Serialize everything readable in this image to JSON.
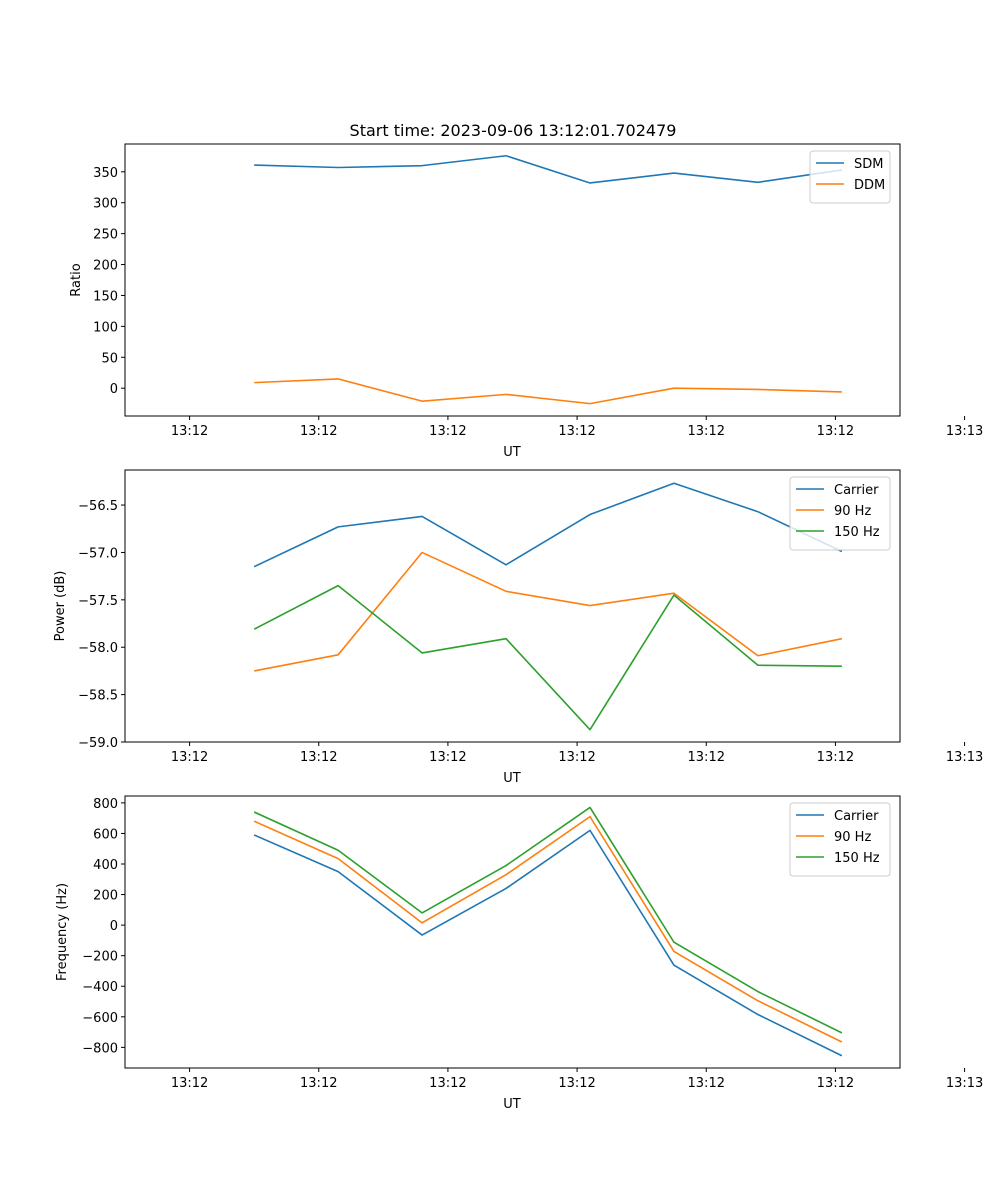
{
  "colors": {
    "blue": "#1f77b4",
    "orange": "#ff7f0e",
    "green": "#2ca02c"
  },
  "chart_data": [
    {
      "type": "line",
      "title": "Start time: 2023-09-06 13:12:01.702479",
      "xlabel": "UT",
      "ylabel": "Ratio",
      "x": [
        0.5,
        1.15,
        1.8,
        2.45,
        3.1,
        3.75,
        4.4,
        5.05
      ],
      "xlim": [
        -0.5,
        5.5
      ],
      "xticks": [
        0,
        1,
        2,
        3,
        4,
        5,
        6
      ],
      "xtick_labels": [
        "13:12",
        "13:12",
        "13:12",
        "13:12",
        "13:12",
        "13:12",
        "13:13"
      ],
      "ylim": [
        -45,
        395
      ],
      "yticks": [
        0,
        50,
        100,
        150,
        200,
        250,
        300,
        350
      ],
      "ytick_labels": [
        "0",
        "50",
        "100",
        "150",
        "200",
        "250",
        "300",
        "350"
      ],
      "legend": "top-right",
      "series": [
        {
          "name": "SDM",
          "color": "#1f77b4",
          "values": [
            361,
            357,
            360,
            376,
            332,
            348,
            333,
            353
          ]
        },
        {
          "name": "DDM",
          "color": "#ff7f0e",
          "values": [
            9,
            15,
            -21,
            -10,
            -25,
            0,
            -2,
            -6
          ]
        }
      ]
    },
    {
      "type": "line",
      "title": "",
      "xlabel": "UT",
      "ylabel": "Power (dB)",
      "x": [
        0.5,
        1.15,
        1.8,
        2.45,
        3.1,
        3.75,
        4.4,
        5.05
      ],
      "xlim": [
        -0.5,
        5.5
      ],
      "xticks": [
        0,
        1,
        2,
        3,
        4,
        5,
        6
      ],
      "xtick_labels": [
        "13:12",
        "13:12",
        "13:12",
        "13:12",
        "13:12",
        "13:12",
        "13:13"
      ],
      "ylim": [
        -59.0,
        -56.13
      ],
      "yticks": [
        -59.0,
        -58.5,
        -58.0,
        -57.5,
        -57.0,
        -56.5
      ],
      "ytick_labels": [
        "−59.0",
        "−58.5",
        "−58.0",
        "−57.5",
        "−57.0",
        "−56.5"
      ],
      "legend": "top-right",
      "series": [
        {
          "name": "Carrier",
          "color": "#1f77b4",
          "values": [
            -57.15,
            -56.73,
            -56.62,
            -57.13,
            -56.6,
            -56.27,
            -56.57,
            -56.99
          ]
        },
        {
          "name": "90 Hz",
          "color": "#ff7f0e",
          "values": [
            -58.25,
            -58.08,
            -57.0,
            -57.41,
            -57.56,
            -57.43,
            -58.09,
            -57.91
          ]
        },
        {
          "name": "150 Hz",
          "color": "#2ca02c",
          "values": [
            -57.81,
            -57.35,
            -58.06,
            -57.91,
            -58.87,
            -57.45,
            -58.19,
            -58.2
          ]
        }
      ]
    },
    {
      "type": "line",
      "title": "",
      "xlabel": "UT",
      "ylabel": "Frequency (Hz)",
      "x": [
        0.5,
        1.15,
        1.8,
        2.45,
        3.1,
        3.75,
        4.4,
        5.05
      ],
      "xlim": [
        -0.5,
        5.5
      ],
      "xticks": [
        0,
        1,
        2,
        3,
        4,
        5,
        6
      ],
      "xtick_labels": [
        "13:12",
        "13:12",
        "13:12",
        "13:12",
        "13:12",
        "13:12",
        "13:13"
      ],
      "ylim": [
        -935,
        845
      ],
      "yticks": [
        -800,
        -600,
        -400,
        -200,
        0,
        200,
        400,
        600,
        800
      ],
      "ytick_labels": [
        "−800",
        "−600",
        "−400",
        "−200",
        "0",
        "200",
        "400",
        "600",
        "800"
      ],
      "legend": "top-right",
      "series": [
        {
          "name": "Carrier",
          "color": "#1f77b4",
          "values": [
            590,
            350,
            -65,
            240,
            620,
            -262,
            -585,
            -855
          ]
        },
        {
          "name": "90 Hz",
          "color": "#ff7f0e",
          "values": [
            680,
            435,
            15,
            330,
            710,
            -172,
            -495,
            -765
          ]
        },
        {
          "name": "150 Hz",
          "color": "#2ca02c",
          "values": [
            740,
            490,
            80,
            390,
            770,
            -112,
            -435,
            -705
          ]
        }
      ]
    }
  ]
}
